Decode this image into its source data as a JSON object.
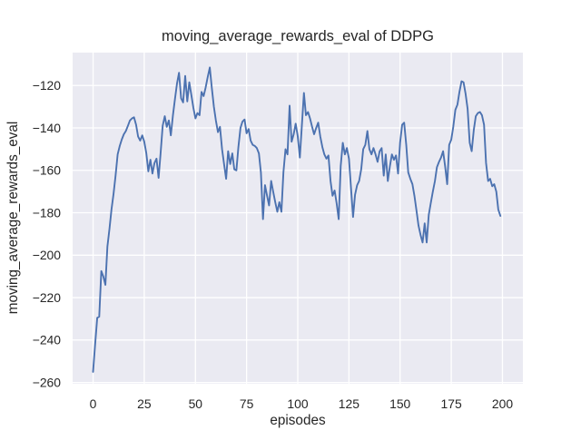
{
  "chart_data": {
    "type": "line",
    "title": "moving_average_rewards_eval of DDPG",
    "xlabel": "episodes",
    "ylabel": "moving_average_rewards_eval",
    "x_start": 0,
    "x_step": 1,
    "values": [
      -255,
      -242,
      -229.5,
      -229,
      -207.5,
      -210,
      -214,
      -196,
      -187.5,
      -178.5,
      -171,
      -162.5,
      -152.5,
      -148.5,
      -145.5,
      -143,
      -141.5,
      -139,
      -136.5,
      -135.5,
      -135,
      -138.5,
      -144,
      -146,
      -143.5,
      -146.5,
      -152,
      -160.5,
      -155,
      -161.5,
      -156.5,
      -154.5,
      -163.5,
      -152,
      -139,
      -134.5,
      -139.5,
      -136.5,
      -143.5,
      -134,
      -126.5,
      -119,
      -114,
      -126,
      -128,
      -115.5,
      -127.5,
      -118.5,
      -124.5,
      -130.5,
      -135.5,
      -133,
      -134,
      -123,
      -125,
      -121,
      -116,
      -111.5,
      -121,
      -130,
      -136.5,
      -142,
      -139.5,
      -150,
      -157,
      -164,
      -151,
      -157,
      -152,
      -159.5,
      -160,
      -149,
      -140,
      -137,
      -136,
      -142.5,
      -140.5,
      -146,
      -148,
      -148.5,
      -149.5,
      -152,
      -161,
      -183,
      -167,
      -172,
      -176.5,
      -165,
      -170,
      -175,
      -179.5,
      -175,
      -179.5,
      -161,
      -150,
      -152.5,
      -129.5,
      -146.5,
      -143,
      -138,
      -144,
      -154,
      -139,
      -123.5,
      -134,
      -132.5,
      -135.5,
      -139.5,
      -143,
      -140,
      -137.5,
      -144,
      -149,
      -152.5,
      -154.5,
      -153,
      -165,
      -172,
      -169.5,
      -175.5,
      -183,
      -158,
      -147,
      -152.5,
      -149.5,
      -154.5,
      -168,
      -182,
      -171.5,
      -167,
      -165,
      -159.5,
      -150,
      -148,
      -141.5,
      -150,
      -152.5,
      -149.5,
      -152.5,
      -156,
      -151,
      -149.5,
      -162.5,
      -152.5,
      -165,
      -158,
      -152.5,
      -155,
      -153,
      -161.5,
      -147,
      -138.5,
      -137.5,
      -148,
      -161,
      -164,
      -166.5,
      -172,
      -179,
      -186,
      -190.5,
      -194,
      -185,
      -194,
      -181,
      -175.5,
      -170,
      -165,
      -158.5,
      -156,
      -154,
      -151,
      -158,
      -166.5,
      -148,
      -145.5,
      -139.5,
      -131.5,
      -129,
      -123,
      -118,
      -118.5,
      -124,
      -131,
      -147,
      -151,
      -141,
      -134.5,
      -133,
      -132.5,
      -134,
      -138.5,
      -156.5,
      -165,
      -164,
      -167.5,
      -166.5,
      -170,
      -178.5,
      -181.5
    ],
    "xticks": [
      0,
      25,
      50,
      75,
      100,
      125,
      150,
      175,
      200
    ],
    "yticks": [
      -120,
      -140,
      -160,
      -180,
      -200,
      -220,
      -240,
      -260
    ],
    "xlim": [
      -10,
      210
    ],
    "ylim": [
      -260.6,
      -104.5
    ],
    "grid": true,
    "legend_position": "none",
    "line_color": "#4c72b0",
    "plot_background": "#eaeaf2",
    "figure_background": "#ffffff",
    "grid_color": "#ffffff",
    "text_color": "#262626"
  }
}
